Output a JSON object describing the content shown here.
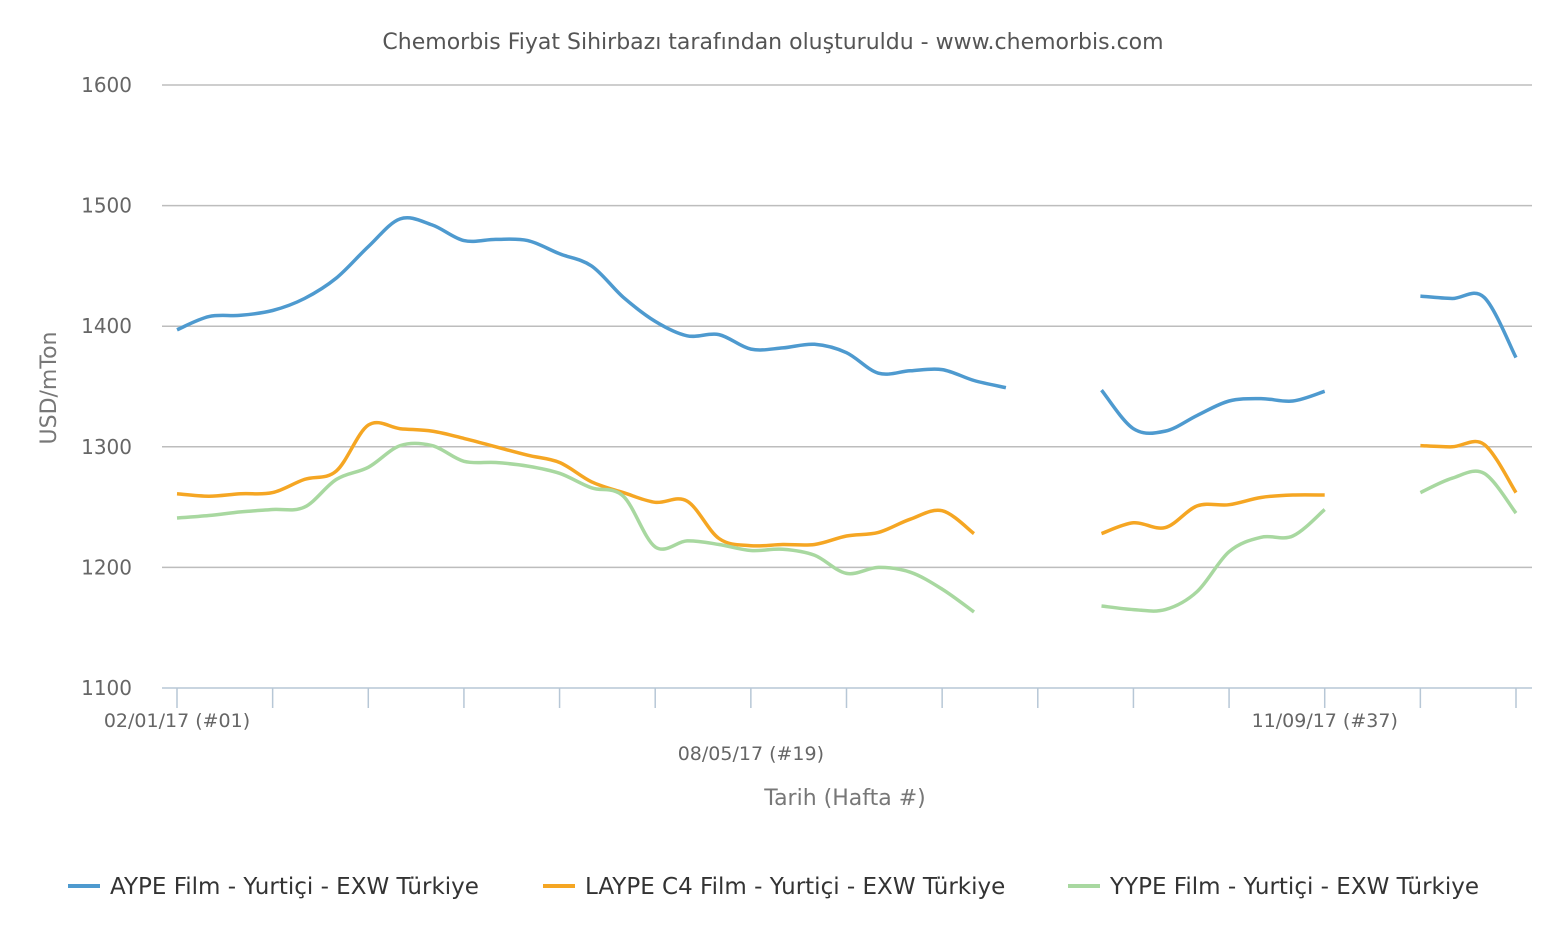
{
  "chart_data": {
    "type": "line",
    "title": "Chemorbis Fiyat Sihirbazı tarafından oluşturuldu - www.chemorbis.com",
    "xlabel": "Tarih (Hafta #)",
    "ylabel": "USD/mTon",
    "ylim": [
      1100,
      1600
    ],
    "yticks": [
      1100,
      1200,
      1300,
      1400,
      1500,
      1600
    ],
    "grid": true,
    "legend_position": "bottom",
    "x": [
      1,
      2,
      3,
      4,
      5,
      6,
      7,
      8,
      9,
      10,
      11,
      12,
      13,
      14,
      15,
      16,
      17,
      18,
      19,
      20,
      21,
      22,
      23,
      24,
      25,
      26,
      27,
      28,
      29,
      30,
      31,
      32,
      33,
      34,
      35,
      36,
      37,
      38,
      39,
      40,
      41,
      42,
      43
    ],
    "xlim": [
      1,
      43
    ],
    "xtick_labels": [
      {
        "x": 1,
        "label": "02/01/17 (#01)",
        "row": 1
      },
      {
        "x": 19,
        "label": "08/05/17 (#19)",
        "row": 2
      },
      {
        "x": 37,
        "label": "11/09/17 (#37)",
        "row": 1
      }
    ],
    "series": [
      {
        "name": "AYPE Film - Yurtiçi - EXW Türkiye",
        "color": "#4e9acf",
        "values": [
          1397,
          1408,
          1409,
          1413,
          1423,
          1440,
          1466,
          1489,
          1484,
          1471,
          1472,
          1471,
          1460,
          1450,
          1424,
          1404,
          1392,
          1393,
          1381,
          1382,
          1385,
          1378,
          1361,
          1363,
          1364,
          1355,
          1349,
          null,
          null,
          1347,
          1315,
          1313,
          1326,
          1338,
          1340,
          1338,
          1346,
          null,
          null,
          1425,
          1423,
          1424,
          1374
        ]
      },
      {
        "name": "LAYPE C4 Film - Yurtiçi - EXW Türkiye",
        "color": "#f5a623",
        "values": [
          1261,
          1259,
          1261,
          1262,
          1273,
          1280,
          1318,
          1315,
          1313,
          1307,
          1300,
          1293,
          1287,
          1271,
          1262,
          1254,
          1255,
          1224,
          1218,
          1219,
          1219,
          1226,
          1229,
          1240,
          1247,
          1228,
          null,
          null,
          null,
          1228,
          1237,
          1233,
          1251,
          1252,
          1258,
          1260,
          1260,
          null,
          null,
          1301,
          1300,
          1302,
          1262
        ]
      },
      {
        "name": "YYPE Film - Yurtiçi - EXW Türkiye",
        "color": "#a8d8a0",
        "values": [
          1241,
          1243,
          1246,
          1248,
          1250,
          1273,
          1283,
          1301,
          1301,
          1288,
          1287,
          1284,
          1278,
          1266,
          1259,
          1217,
          1222,
          1219,
          1214,
          1215,
          1210,
          1195,
          1200,
          1196,
          1182,
          1163,
          null,
          null,
          null,
          1168,
          1165,
          1165,
          1180,
          1213,
          1225,
          1226,
          1248,
          null,
          null,
          1262,
          1274,
          1278,
          1245
        ]
      }
    ]
  }
}
